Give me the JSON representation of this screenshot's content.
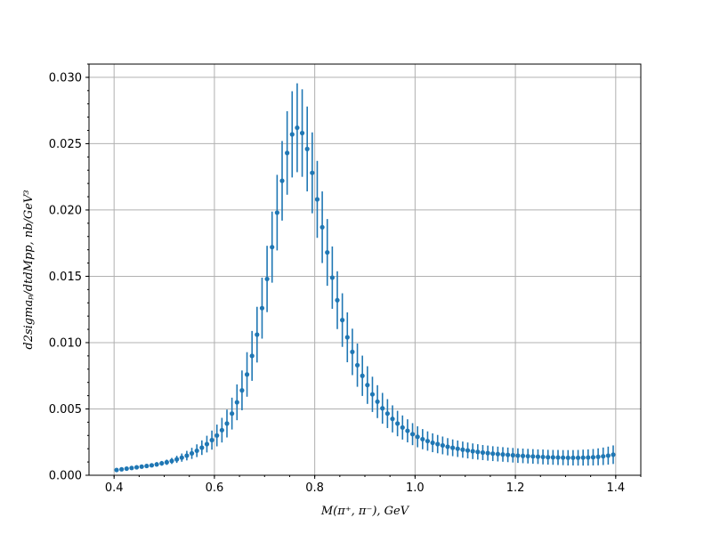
{
  "chart_data": {
    "type": "scatter",
    "title": "",
    "xlabel": "M(π⁺, π⁻), GeV",
    "ylabel": "d2sigmaₚ/dtdMpp, nb/GeV³",
    "xlim": [
      0.35,
      1.45
    ],
    "ylim": [
      0.0,
      0.031
    ],
    "xticks": [
      0.4,
      0.6,
      0.8,
      1.0,
      1.2,
      1.4
    ],
    "xtick_labels": [
      "0.4",
      "0.6",
      "0.8",
      "1.0",
      "1.2",
      "1.4"
    ],
    "yticks": [
      0.0,
      0.005,
      0.01,
      0.015,
      0.02,
      0.025,
      0.03
    ],
    "ytick_labels": [
      "0.000",
      "0.005",
      "0.010",
      "0.015",
      "0.020",
      "0.025",
      "0.030"
    ],
    "grid": true,
    "color": "#1f77b4",
    "series": [
      {
        "x": [
          0.405,
          0.415,
          0.425,
          0.435,
          0.445,
          0.455,
          0.465,
          0.475,
          0.485,
          0.495,
          0.505,
          0.515,
          0.525,
          0.535,
          0.545,
          0.555,
          0.565,
          0.575,
          0.585,
          0.595,
          0.605,
          0.615,
          0.625,
          0.635,
          0.645,
          0.655,
          0.665,
          0.675,
          0.685,
          0.695,
          0.705,
          0.715,
          0.725,
          0.735,
          0.745,
          0.755,
          0.765,
          0.775,
          0.785,
          0.795,
          0.805,
          0.815,
          0.825,
          0.835,
          0.845,
          0.855,
          0.865,
          0.875,
          0.885,
          0.895,
          0.905,
          0.915,
          0.925,
          0.935,
          0.945,
          0.955,
          0.965,
          0.975,
          0.985,
          0.995,
          1.005,
          1.015,
          1.025,
          1.035,
          1.045,
          1.055,
          1.065,
          1.075,
          1.085,
          1.095,
          1.105,
          1.115,
          1.125,
          1.135,
          1.145,
          1.155,
          1.165,
          1.175,
          1.185,
          1.195,
          1.205,
          1.215,
          1.225,
          1.235,
          1.245,
          1.255,
          1.265,
          1.275,
          1.285,
          1.295,
          1.305,
          1.315,
          1.325,
          1.335,
          1.345,
          1.355,
          1.365,
          1.375,
          1.385,
          1.395
        ],
        "y": [
          0.0004,
          0.00045,
          0.0005,
          0.00055,
          0.0006,
          0.00065,
          0.0007,
          0.00075,
          0.00082,
          0.0009,
          0.00098,
          0.00108,
          0.0012,
          0.00133,
          0.00148,
          0.00165,
          0.00185,
          0.00208,
          0.00235,
          0.00265,
          0.003,
          0.0034,
          0.0039,
          0.00465,
          0.0055,
          0.0064,
          0.0076,
          0.009,
          0.0106,
          0.0126,
          0.0148,
          0.0172,
          0.0198,
          0.0222,
          0.0243,
          0.0257,
          0.0262,
          0.0258,
          0.0246,
          0.0228,
          0.0208,
          0.0187,
          0.0168,
          0.0149,
          0.0132,
          0.0117,
          0.0104,
          0.0093,
          0.0083,
          0.0075,
          0.0068,
          0.0061,
          0.00555,
          0.00505,
          0.00465,
          0.00425,
          0.0039,
          0.0036,
          0.00335,
          0.0031,
          0.0029,
          0.00272,
          0.00258,
          0.00245,
          0.00235,
          0.00225,
          0.00215,
          0.00207,
          0.002,
          0.00193,
          0.00187,
          0.00181,
          0.00176,
          0.00171,
          0.00167,
          0.00163,
          0.0016,
          0.00157,
          0.00154,
          0.00151,
          0.00148,
          0.00146,
          0.00144,
          0.00142,
          0.0014,
          0.00138,
          0.00136,
          0.00135,
          0.00134,
          0.00133,
          0.00132,
          0.00132,
          0.00132,
          0.00133,
          0.00134,
          0.00136,
          0.00139,
          0.00143,
          0.00148,
          0.00155
        ],
        "yerr": [
          8e-05,
          9e-05,
          0.0001,
          0.0001,
          0.00011,
          0.00012,
          0.00013,
          0.00014,
          0.00016,
          0.00018,
          0.0002,
          0.00023,
          0.00027,
          0.00031,
          0.00036,
          0.00042,
          0.00048,
          0.00055,
          0.00063,
          0.00072,
          0.00082,
          0.00093,
          0.00105,
          0.0012,
          0.00135,
          0.0015,
          0.00168,
          0.00188,
          0.0021,
          0.0023,
          0.0025,
          0.00268,
          0.00285,
          0.003,
          0.00315,
          0.00325,
          0.00335,
          0.0033,
          0.0032,
          0.00305,
          0.0029,
          0.0027,
          0.00252,
          0.00235,
          0.00218,
          0.00202,
          0.00188,
          0.00175,
          0.00163,
          0.00152,
          0.00142,
          0.00133,
          0.00124,
          0.00116,
          0.00109,
          0.00102,
          0.00096,
          0.00091,
          0.00087,
          0.00083,
          0.00079,
          0.00076,
          0.00073,
          0.00071,
          0.00069,
          0.00067,
          0.00065,
          0.00063,
          0.00062,
          0.00061,
          0.0006,
          0.00059,
          0.00058,
          0.00057,
          0.00057,
          0.00056,
          0.00056,
          0.00055,
          0.00055,
          0.00055,
          0.00055,
          0.00055,
          0.00055,
          0.00055,
          0.00055,
          0.00056,
          0.00056,
          0.00056,
          0.00057,
          0.00057,
          0.00058,
          0.00058,
          0.00059,
          0.0006,
          0.00061,
          0.00062,
          0.00064,
          0.00066,
          0.00068,
          0.0007
        ]
      }
    ]
  }
}
